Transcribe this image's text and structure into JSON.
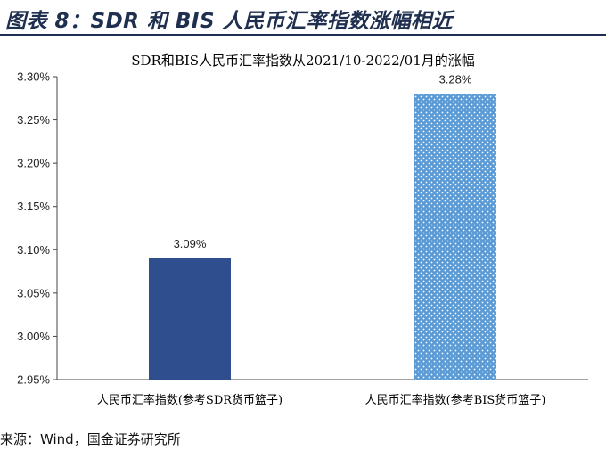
{
  "figure": {
    "title": "图表 8：SDR 和 BIS 人民币汇率指数涨幅相近",
    "source": "来源：Wind，国金证券研究所"
  },
  "colors": {
    "header": "#1f2f4f",
    "bar_solid": "#2e4e8e",
    "bar_dotted": "#5b9bd5",
    "axis": "#444444"
  },
  "chart_data": {
    "type": "bar",
    "title": "SDR和BIS人民币汇率指数从2021/10-2022/01月的涨幅",
    "categories": [
      "人民币汇率指数(参考SDR货币篮子)",
      "人民币汇率指数(参考BIS货币篮子)"
    ],
    "values": [
      3.09,
      3.28
    ],
    "data_labels": [
      "3.09%",
      "3.28%"
    ],
    "fills": [
      "solid",
      "dotted"
    ],
    "ylim": [
      2.95,
      3.3
    ],
    "yticks": [
      2.95,
      3.0,
      3.05,
      3.1,
      3.15,
      3.2,
      3.25,
      3.3
    ],
    "ytick_labels": [
      "2.95%",
      "3.00%",
      "3.05%",
      "3.10%",
      "3.15%",
      "3.20%",
      "3.25%",
      "3.30%"
    ],
    "xlabel": "",
    "ylabel": "",
    "grid": false,
    "legend": "none"
  }
}
